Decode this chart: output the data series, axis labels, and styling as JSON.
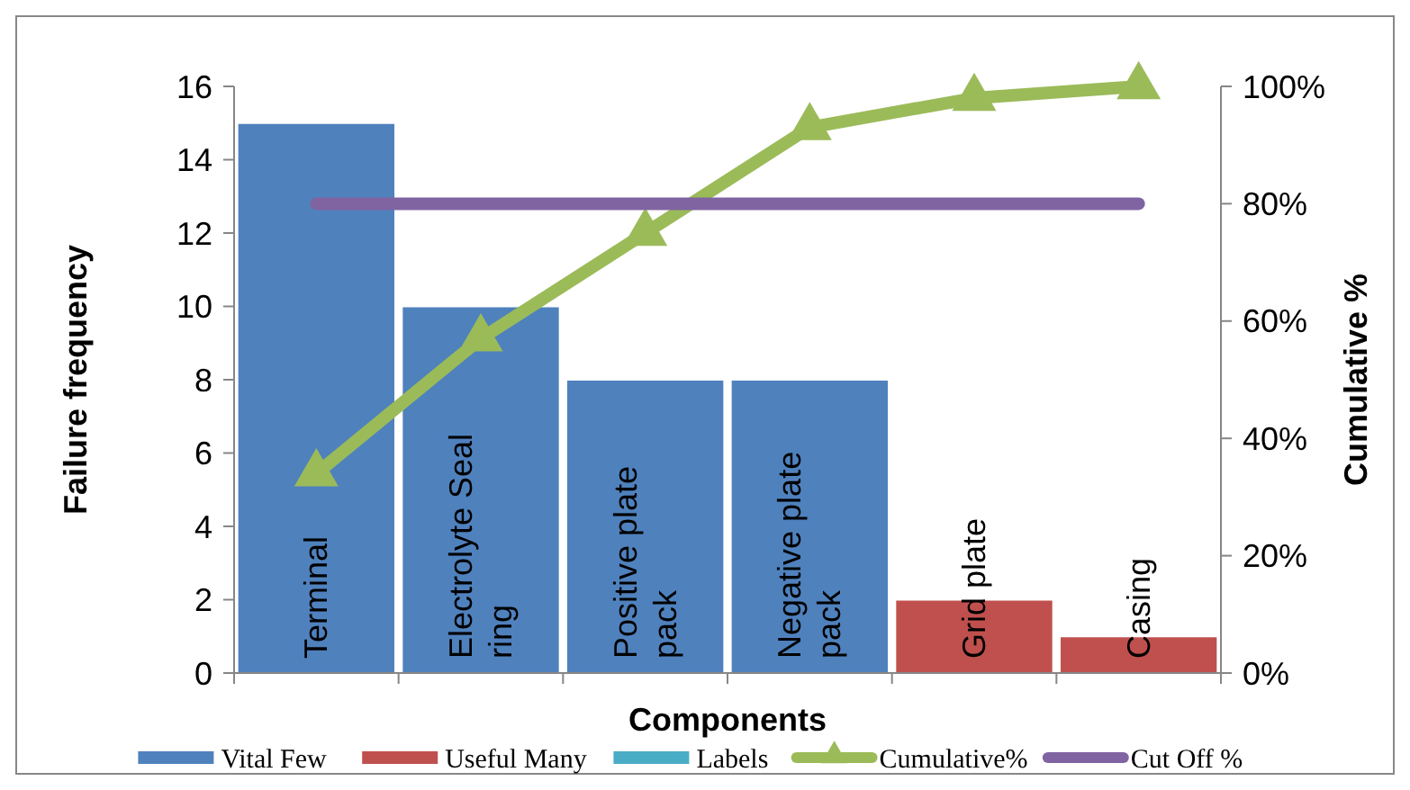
{
  "chart_data": {
    "type": "bar",
    "xlabel": "Components",
    "ylabel": "Failure frequency",
    "y2label": "Cumulative %",
    "categories": [
      "Terminal",
      "Electrolyte  Seal ring",
      "Positive plate pack",
      "Negative plate pack",
      "Grid plate",
      "Casing"
    ],
    "ylim": [
      0,
      16
    ],
    "yticks": [
      0,
      2,
      4,
      6,
      8,
      10,
      12,
      14,
      16
    ],
    "y2lim": [
      0,
      100
    ],
    "y2ticks": [
      {
        "value": 0,
        "label": "0%"
      },
      {
        "value": 20,
        "label": "20%"
      },
      {
        "value": 40,
        "label": "40%"
      },
      {
        "value": 60,
        "label": "60%"
      },
      {
        "value": 80,
        "label": "80%"
      },
      {
        "value": 100,
        "label": "100%"
      }
    ],
    "legend": "bottom",
    "grid": false,
    "series": [
      {
        "name": "Vital Few",
        "color": "#4f81bd",
        "values": [
          15,
          10,
          8,
          8,
          null,
          null
        ]
      },
      {
        "name": "Useful Many",
        "color": "#c0504d",
        "values": [
          null,
          null,
          null,
          null,
          2,
          1
        ]
      },
      {
        "name": "Labels",
        "color": "#4bacc6",
        "values": [
          null,
          null,
          null,
          null,
          null,
          null
        ]
      },
      {
        "name": "Cumulative%",
        "color": "#9bbb59",
        "type": "line",
        "axis": "y2",
        "marker": "triangle",
        "values": [
          34,
          57,
          75,
          93,
          98,
          100
        ]
      },
      {
        "name": "Cut Off %",
        "color": "#8064a2",
        "type": "line",
        "axis": "y2",
        "marker": "none",
        "values": [
          80,
          80,
          80,
          80,
          80,
          80
        ]
      }
    ]
  }
}
